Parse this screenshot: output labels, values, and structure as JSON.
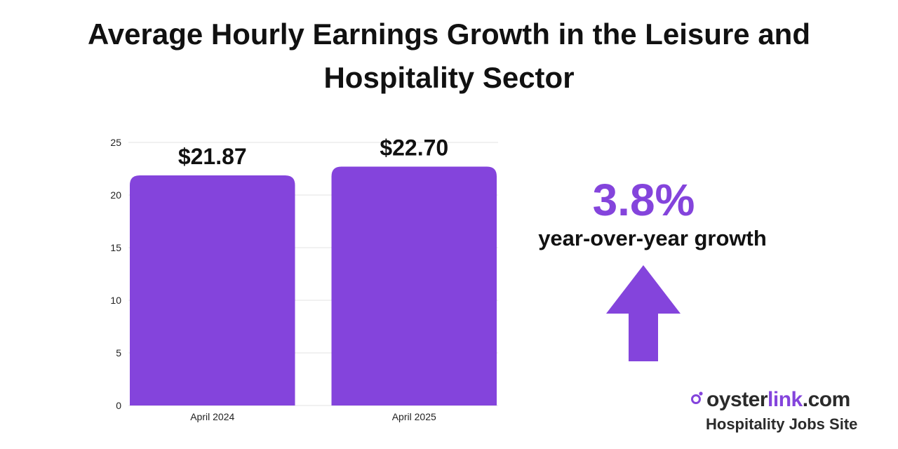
{
  "chart_data": {
    "type": "bar",
    "title": "Average Hourly Earnings Growth in the Leisure and Hospitality Sector",
    "categories": [
      "April 2024",
      "April 2025"
    ],
    "values": [
      21.87,
      22.7
    ],
    "data_labels": [
      "$21.87",
      "$22.70"
    ],
    "yticks": [
      "0",
      "5",
      "10",
      "15",
      "20",
      "25"
    ],
    "ylim": [
      0,
      25
    ],
    "xlabel": "",
    "ylabel": "",
    "grid": true,
    "bar_color": "#8444dc"
  },
  "callout": {
    "value": "3.8%",
    "caption": "year-over-year growth",
    "arrow_icon": "up-arrow-icon",
    "color": "#8444dc"
  },
  "brand": {
    "name_prefix": "oyster",
    "name_accent": "link",
    "name_suffix": ".com",
    "tagline": "Hospitality Jobs Site",
    "accent_color": "#8444dc"
  }
}
